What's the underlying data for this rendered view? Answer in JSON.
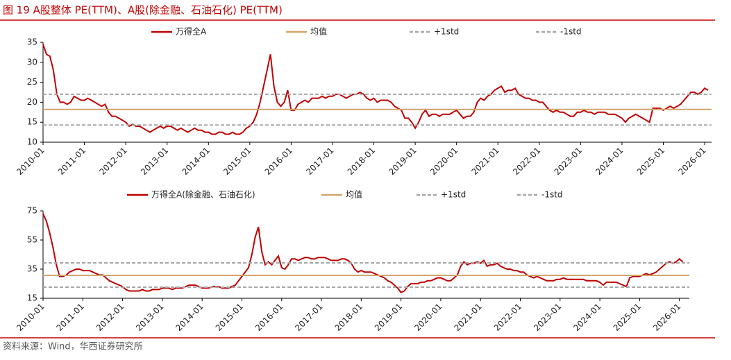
{
  "header": "图 19 A股整体 PE(TTM)、A股(除金融、石油石化) PE(TTM)",
  "source": "资料来源：Wind，华西证券研究所",
  "chart_data": [
    {
      "type": "line",
      "x_start": "2010-01",
      "xlim": [
        "2010-01",
        "2026-03"
      ],
      "xticks": [
        "2010-01",
        "2011-01",
        "2012-01",
        "2013-01",
        "2014-01",
        "2015-01",
        "2016-01",
        "2017-01",
        "2018-01",
        "2019-01",
        "2020-01",
        "2021-01",
        "2022-01",
        "2023-01",
        "2024-01",
        "2025-01",
        "2026-01"
      ],
      "ylim": [
        10,
        35
      ],
      "yticks": [
        10,
        15,
        20,
        25,
        30,
        35
      ],
      "series": [
        {
          "name": "万得全A",
          "color": "#c00000",
          "values": [
            34.5,
            32,
            31.5,
            28,
            22,
            20,
            20,
            19.5,
            20,
            21.5,
            21,
            20.5,
            20.5,
            21,
            20.5,
            20,
            19.5,
            19,
            19.5,
            17.5,
            16.5,
            16.5,
            16,
            15.5,
            15,
            14,
            14.5,
            14,
            14,
            13.5,
            13,
            12.5,
            13,
            13.5,
            14,
            13.5,
            14,
            14,
            13.5,
            13,
            13.5,
            13,
            12.5,
            13,
            13.5,
            13,
            13,
            12.5,
            12.5,
            12,
            12,
            12.5,
            12.5,
            12,
            12,
            12.5,
            12,
            12,
            12.5,
            13.5,
            14,
            15,
            17,
            20,
            24,
            28,
            32,
            24,
            20,
            19,
            20,
            23,
            18,
            18,
            19.5,
            20,
            20.5,
            20,
            21,
            21,
            21,
            21.5,
            21,
            21.5,
            21.5,
            22,
            22,
            21.5,
            21,
            21.5,
            22,
            22,
            22.5,
            22,
            21,
            20.5,
            21,
            20,
            20.5,
            20.5,
            20.5,
            20,
            19,
            18.5,
            18,
            16,
            16,
            15,
            13.5,
            15,
            17,
            18,
            16.5,
            17,
            17,
            16.5,
            17,
            17,
            17,
            17.5,
            18,
            17,
            16,
            16.5,
            16.5,
            17.5,
            20,
            21,
            20.5,
            21.5,
            22,
            23,
            23.5,
            24,
            22.5,
            23,
            23,
            23.5,
            22,
            21.5,
            21,
            21,
            20.5,
            20.5,
            20,
            20,
            19,
            18,
            17.5,
            18,
            17.5,
            17.5,
            17,
            16.5,
            16.5,
            17.5,
            17.5,
            18,
            17.5,
            17.5,
            17,
            17.5,
            17.5,
            17.5,
            17,
            17,
            17,
            16.5,
            16,
            15,
            16,
            16.5,
            17,
            16.5,
            16,
            15.5,
            15,
            18.5,
            18.5,
            18.5,
            18,
            18.5,
            19,
            18.5,
            19,
            19.5,
            20.5,
            21.5,
            22.5,
            22.5,
            22,
            22.5,
            23.5,
            23
          ]
        },
        {
          "name": "均值",
          "color": "#d4a46a",
          "value": 18.2
        },
        {
          "name": "+1std",
          "color": "#a6a6a6",
          "dash": true,
          "value": 22.0
        },
        {
          "name": "-1std",
          "color": "#a6a6a6",
          "dash": true,
          "value": 14.3
        }
      ]
    },
    {
      "type": "line",
      "x_start": "2010-01",
      "xlim": [
        "2010-01",
        "2026-04"
      ],
      "xticks": [
        "2010-01",
        "2011-01",
        "2012-01",
        "2013-01",
        "2014-01",
        "2015-01",
        "2016-01",
        "2017-01",
        "2018-01",
        "2019-01",
        "2020-01",
        "2021-01",
        "2022-01",
        "2023-01",
        "2024-01",
        "2025-01",
        "2026-01"
      ],
      "ylim": [
        15,
        75
      ],
      "yticks": [
        15,
        35,
        55,
        75
      ],
      "series": [
        {
          "name": "万得全A(除金融、石油石化)",
          "color": "#c00000",
          "values": [
            73,
            68,
            60,
            50,
            38,
            30,
            30,
            31,
            33,
            34,
            35,
            35,
            34,
            34,
            34,
            33,
            32,
            31,
            31,
            29,
            27,
            26,
            25,
            24,
            23,
            21,
            20,
            20,
            20,
            20,
            21,
            20,
            20,
            21,
            21,
            21,
            22,
            22,
            22,
            21,
            22,
            22,
            22,
            23,
            24,
            24,
            24,
            23,
            22,
            22,
            22,
            23,
            23,
            23,
            22,
            22,
            22,
            23,
            24,
            27,
            30,
            33,
            36,
            45,
            57,
            64,
            47,
            38,
            40,
            38,
            41,
            44,
            36,
            35,
            38,
            42,
            42,
            41,
            42,
            43,
            43,
            42,
            42,
            43,
            43,
            43,
            42,
            41,
            41,
            41,
            42,
            42,
            41,
            39,
            35,
            33,
            34,
            33,
            33,
            33,
            32,
            31,
            30,
            29,
            27,
            26,
            24,
            22,
            19,
            20,
            23,
            25,
            25,
            25,
            26,
            26,
            27,
            27,
            28,
            29,
            29,
            28,
            27,
            27,
            29,
            31,
            37,
            40,
            38,
            39,
            39,
            40,
            39,
            41,
            37,
            38,
            38,
            39,
            37,
            36,
            35,
            35,
            34,
            34,
            33,
            33,
            31,
            30,
            29,
            30,
            29,
            28,
            27,
            27,
            27,
            28,
            28,
            29,
            28,
            28,
            28,
            28,
            28,
            28,
            27,
            27,
            27,
            27,
            26,
            24,
            26,
            26,
            26,
            26,
            25,
            24,
            23,
            29,
            30,
            30,
            30,
            31,
            32,
            31,
            32,
            33,
            35,
            37,
            39,
            40,
            39,
            40,
            42,
            40
          ]
        },
        {
          "name": "均值",
          "color": "#d4a46a",
          "value": 30.7
        },
        {
          "name": "+1std",
          "color": "#a6a6a6",
          "dash": true,
          "value": 39.3
        },
        {
          "name": "-1std",
          "color": "#a6a6a6",
          "dash": true,
          "value": 22.6
        }
      ]
    }
  ]
}
